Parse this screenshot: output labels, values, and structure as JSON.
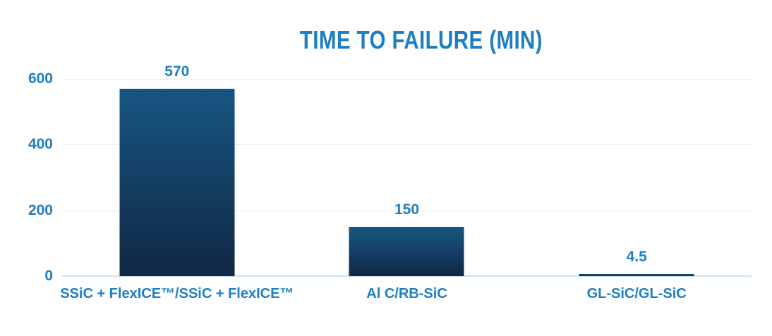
{
  "title": "TIME TO FAILURE (MIN)",
  "colors": {
    "accent_text": "#1f7ec4",
    "title_text": "#1d7ec2",
    "bar_gradient_top": "#175682",
    "bar_gradient_bottom": "#112743",
    "gridline": "#e4e9ee",
    "baseline": "#cde2f1",
    "background": "#ffffff"
  },
  "chart_data": {
    "type": "bar",
    "title": "TIME TO FAILURE (MIN)",
    "categories": [
      "SSiC + FlexICE™/SSiC + FlexICE™",
      "Al C/RB-SiC",
      "GL-SiC/GL-SiC"
    ],
    "values": [
      570,
      150,
      4.5
    ],
    "value_labels": [
      "570",
      "150",
      "4.5"
    ],
    "xlabel": "",
    "ylabel": "",
    "ylim": [
      0,
      600
    ],
    "yticks": [
      0,
      200,
      400,
      600
    ],
    "ytick_labels": [
      "0",
      "200",
      "400",
      "600"
    ],
    "grid": true,
    "legend_position": "none"
  }
}
